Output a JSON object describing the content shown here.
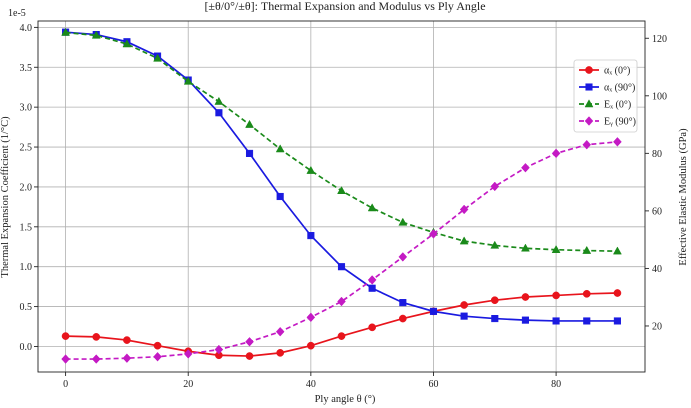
{
  "chart_data": {
    "type": "line",
    "title": "[±θ/0°/±θ]: Thermal Expansion and Modulus vs Ply Angle",
    "xlabel": "Ply angle θ (°)",
    "ylabel_left": "Thermal Expansion Coefficient (1/°C)",
    "ylabel_right": "Effective Elastic Modulus (GPa)",
    "left_offset_label": "1e-5",
    "xlim": [
      -4.5,
      94.5
    ],
    "ylim_left": [
      -0.32,
      4.08
    ],
    "ylim_right": [
      4,
      126
    ],
    "x_ticks": [
      0,
      20,
      40,
      60,
      80
    ],
    "y_left_ticks": [
      "0.0",
      "0.5",
      "1.0",
      "1.5",
      "2.0",
      "2.5",
      "3.0",
      "3.5",
      "4.0"
    ],
    "y_right_ticks": [
      "20",
      "40",
      "60",
      "80",
      "100",
      "120"
    ],
    "x": [
      0,
      5,
      10,
      15,
      20,
      25,
      30,
      35,
      40,
      45,
      50,
      55,
      60,
      65,
      70,
      75,
      80,
      85,
      90
    ],
    "series": [
      {
        "name": "αₓ (0°)",
        "axis": "left",
        "color": "#e8141c",
        "marker": "circle",
        "dash": "solid",
        "values": [
          0.13,
          0.12,
          0.08,
          0.01,
          -0.06,
          -0.11,
          -0.12,
          -0.08,
          0.01,
          0.13,
          0.24,
          0.35,
          0.44,
          0.52,
          0.58,
          0.62,
          0.64,
          0.66,
          0.67
        ]
      },
      {
        "name": "αₓ (90°)",
        "axis": "left",
        "color": "#1a1ae0",
        "marker": "square",
        "dash": "solid",
        "values": [
          3.94,
          3.91,
          3.82,
          3.64,
          3.34,
          2.93,
          2.42,
          1.88,
          1.39,
          1.0,
          0.73,
          0.55,
          0.44,
          0.38,
          0.35,
          0.33,
          0.32,
          0.32,
          0.32
        ]
      },
      {
        "name": "Eₓ (0°)",
        "axis": "right",
        "color": "#1a8a1a",
        "marker": "triangle",
        "dash": "dashed",
        "values": [
          122,
          121,
          118,
          113,
          105,
          98,
          90,
          81.5,
          74,
          67,
          61,
          56,
          52.5,
          49.5,
          48,
          47,
          46.5,
          46.2,
          46
        ]
      },
      {
        "name": "Eᵧ (90°)",
        "axis": "right",
        "color": "#c41ac4",
        "marker": "diamond",
        "dash": "dashed",
        "values": [
          8.5,
          8.5,
          8.8,
          9.3,
          10.3,
          11.8,
          14.5,
          18,
          23,
          28.5,
          36,
          44,
          52,
          60.5,
          68.5,
          75,
          80,
          83,
          84
        ]
      }
    ],
    "legend": "upper-right",
    "grid": true
  }
}
